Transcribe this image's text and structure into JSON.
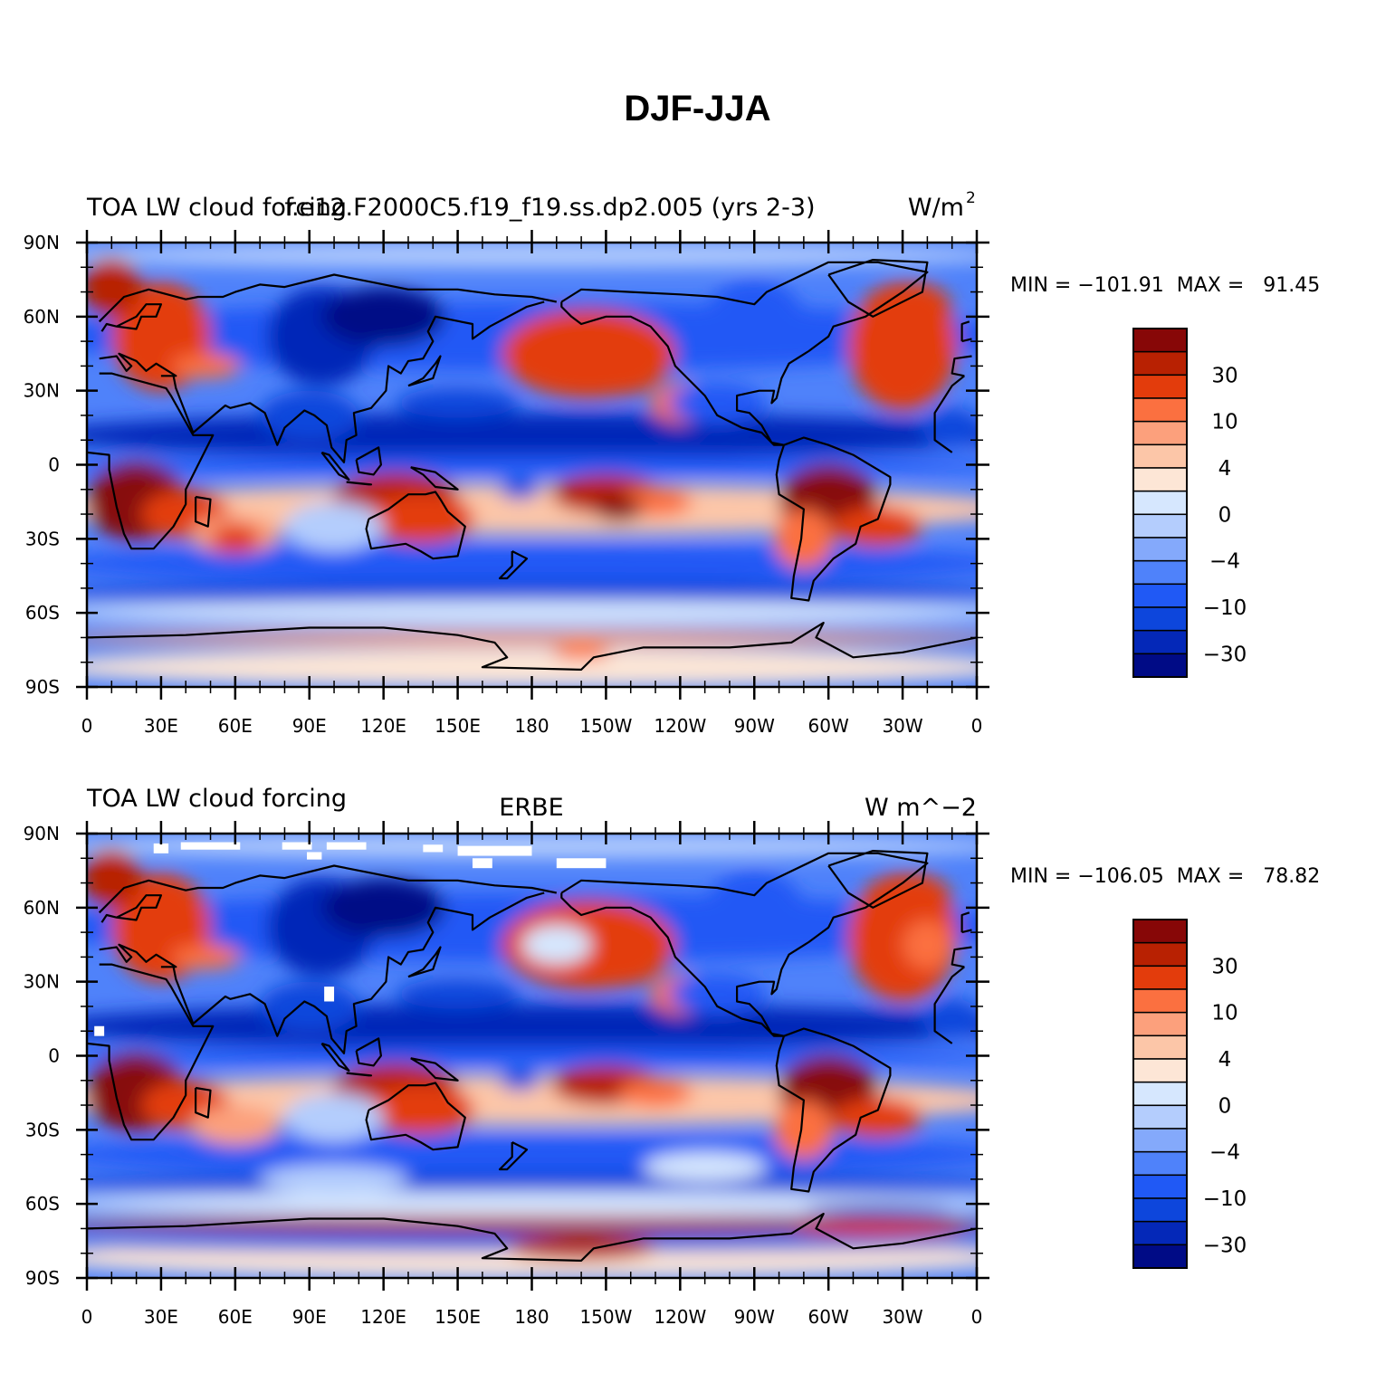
{
  "title": "DJF-JJA",
  "panels": [
    {
      "left_title": "TOA LW cloud forcing",
      "center_title": "f.e12.F2000C5.f19_f19.ss.dp2.005 (yrs 2-3)",
      "right_title": "W/m",
      "right_title_sup": "2",
      "min_max": "MIN = −101.91  MAX =   91.45",
      "lat_labels": [
        "90N",
        "60N",
        "30N",
        "0",
        "30S",
        "60S",
        "90S"
      ],
      "lon_labels": [
        "0",
        "30E",
        "60E",
        "90E",
        "120E",
        "150E",
        "180",
        "150W",
        "120W",
        "90W",
        "60W",
        "30W",
        "0"
      ],
      "colorbar_labels": [
        "30",
        "10",
        "4",
        "0",
        "−4",
        "−10",
        "−30"
      ]
    },
    {
      "left_title": "TOA LW cloud forcing",
      "center_title": "ERBE",
      "right_title": "W m^−2",
      "right_title_sup": "",
      "min_max": "MIN = −106.05  MAX =   78.82",
      "lat_labels": [
        "90N",
        "60N",
        "30N",
        "0",
        "30S",
        "60S",
        "90S"
      ],
      "lon_labels": [
        "0",
        "30E",
        "60E",
        "90E",
        "120E",
        "150E",
        "180",
        "150W",
        "120W",
        "90W",
        "60W",
        "30W",
        "0"
      ],
      "colorbar_labels": [
        "30",
        "10",
        "4",
        "0",
        "−4",
        "−10",
        "−30"
      ]
    }
  ],
  "colors": {
    "palette": [
      "#000b86",
      "#0428b8",
      "#0d46dc",
      "#2059f5",
      "#4f82fa",
      "#84a9fb",
      "#b4cdfd",
      "#d6e7fe",
      "#fde6d6",
      "#fcc6a8",
      "#fca07c",
      "#fb7040",
      "#e33c0c",
      "#b82102",
      "#870707"
    ]
  },
  "map_data": {
    "field": "TOA LW cloud forcing difference DJF-JJA",
    "units": "W/m2",
    "contour_levels": [
      -40,
      -30,
      -20,
      -10,
      -6,
      -4,
      -2,
      0,
      2,
      4,
      6,
      10,
      20,
      30,
      40
    ],
    "lon_range": [
      0,
      360
    ],
    "lat_range": [
      -90,
      90
    ]
  }
}
